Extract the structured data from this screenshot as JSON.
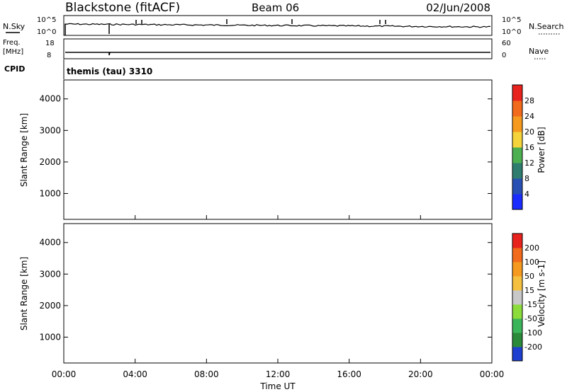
{
  "header": {
    "site": "Blackstone (fitACF)",
    "beam": "Beam 06",
    "date": "02/Jun/2008"
  },
  "panels": {
    "nsky_label": "N.Sky",
    "nsearch_label": "N.Search",
    "freq_label": "Freq.",
    "freq_unit": "[MHz]",
    "nave_label": "Nave",
    "cpid_label": "CPID",
    "cpid_value": "themis (tau) 3310",
    "nsky_ticks": [
      "10^5",
      "10^0"
    ],
    "nsearch_ticks": [
      "10^5",
      "10^0"
    ],
    "freq_ticks": [
      "18",
      "8"
    ],
    "nave_ticks": [
      "60",
      "0"
    ]
  },
  "chart_data": [
    {
      "type": "heatmap",
      "name": "power",
      "ylabel": "Slant Range [km]",
      "xlabel": "Time UT",
      "xlim": [
        0,
        24
      ],
      "ylim": [
        180,
        4600
      ],
      "x_ticks": [
        "00:00",
        "04:00",
        "08:00",
        "12:00",
        "16:00",
        "20:00",
        "00:00"
      ],
      "y_ticks": [
        "1000",
        "2000",
        "3000",
        "4000"
      ],
      "colorbar": {
        "label": "Power [dB]",
        "ticks": [
          "4",
          "8",
          "12",
          "16",
          "20",
          "24",
          "28"
        ],
        "colors": [
          "#1a2cff",
          "#2850b4",
          "#2e7d6f",
          "#4caf50",
          "#f5d33a",
          "#f59a1e",
          "#f26a1b",
          "#e8231e"
        ]
      }
    },
    {
      "type": "heatmap",
      "name": "velocity",
      "ylabel": "Slant Range [km]",
      "xlabel": "Time UT",
      "xlim": [
        0,
        24
      ],
      "ylim": [
        180,
        4600
      ],
      "x_ticks": [
        "00:00",
        "04:00",
        "08:00",
        "12:00",
        "16:00",
        "20:00",
        "00:00"
      ],
      "y_ticks": [
        "1000",
        "2000",
        "3000",
        "4000"
      ],
      "colorbar": {
        "label": "Velocity [m s-1]",
        "ticks": [
          "200",
          "100",
          "50",
          "15",
          "-15",
          "-50",
          "-100",
          "-200"
        ],
        "colors": [
          "#1e3fcf",
          "#2a8a3a",
          "#3bb55a",
          "#8cdc3c",
          "#c8c8c8",
          "#f5c040",
          "#f59a1e",
          "#f26a1b",
          "#e8231e"
        ]
      }
    }
  ]
}
